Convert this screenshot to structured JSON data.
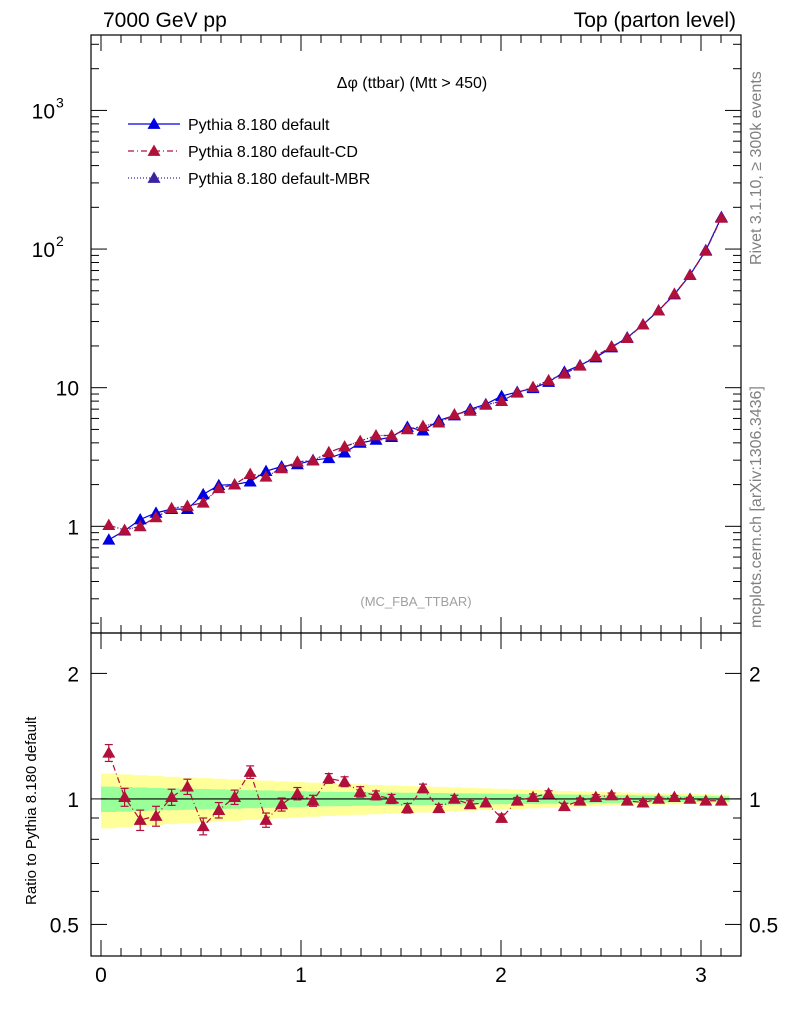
{
  "header": {
    "left": "7000 GeV pp",
    "right": "Top (parton level)"
  },
  "side_text": {
    "rivet": "Rivet 3.1.10, ≥ 300k events",
    "mcplots": "mcplots.cern.ch [arXiv:1306.3436]"
  },
  "colors": {
    "default": "#0000e0",
    "cd": "#b0103a",
    "mbr": "#3c22a0",
    "band_outer": "#ffff99",
    "band_inner": "#99ff99"
  },
  "chart_data": [
    {
      "type": "line",
      "title": "Δφ (ttbar) (Mtt > 450)",
      "annotation": "(MC_FBA_TTBAR)",
      "xlabel": "",
      "ylabel": "",
      "yscale": "log",
      "xlim": [
        -0.05,
        3.2
      ],
      "ylim": [
        0.17,
        3500
      ],
      "y_ticks": [
        {
          "v": 1,
          "label": "1"
        },
        {
          "v": 10,
          "label": "10"
        },
        {
          "v": 100,
          "label": "10",
          "sup": "2"
        },
        {
          "v": 1000,
          "label": "10",
          "sup": "3"
        }
      ],
      "legend_position": "top-left",
      "x": [
        0.039,
        0.118,
        0.196,
        0.275,
        0.353,
        0.432,
        0.511,
        0.589,
        0.668,
        0.746,
        0.825,
        0.903,
        0.982,
        1.06,
        1.139,
        1.218,
        1.296,
        1.375,
        1.453,
        1.532,
        1.61,
        1.689,
        1.767,
        1.846,
        1.924,
        2.003,
        2.081,
        2.16,
        2.238,
        2.317,
        2.395,
        2.474,
        2.553,
        2.631,
        2.71,
        2.788,
        2.867,
        2.945,
        3.024,
        3.102
      ],
      "series": [
        {
          "name": "Pythia 8.180 default",
          "color": "#0000e0",
          "dash": "",
          "values": [
            0.8,
            0.93,
            1.12,
            1.25,
            1.33,
            1.33,
            1.7,
            1.98,
            2.0,
            2.1,
            2.5,
            2.7,
            2.8,
            3.0,
            3.1,
            3.4,
            4.0,
            4.2,
            4.4,
            5.2,
            4.9,
            5.8,
            6.3,
            7.0,
            7.6,
            8.7,
            9.3,
            9.9,
            11.0,
            13.0,
            14.5,
            16.5,
            19.5,
            23.0,
            28.5,
            36.0,
            47.0,
            65.0,
            98.0,
            170.0
          ]
        },
        {
          "name": "Pythia 8.180 default-CD",
          "color": "#b0103a",
          "dash": "6,3,1,3",
          "values": [
            1.02,
            0.94,
            1.0,
            1.16,
            1.35,
            1.4,
            1.48,
            1.88,
            2.0,
            2.38,
            2.28,
            2.62,
            2.92,
            2.98,
            3.42,
            3.76,
            4.12,
            4.52,
            4.52,
            5.0,
            5.28,
            5.6,
            6.4,
            6.8,
            7.52,
            8.0,
            9.2,
            10.1,
            11.3,
            12.6,
            14.4,
            16.9,
            19.8,
            22.8,
            28.5,
            36.0,
            47.5,
            65.0,
            97.0,
            168.0
          ]
        },
        {
          "name": "Pythia 8.180 default-MBR",
          "color": "#3c22a0",
          "dash": "1,2",
          "values": [
            1.02,
            0.94,
            1.0,
            1.16,
            1.35,
            1.4,
            1.48,
            1.88,
            2.0,
            2.38,
            2.28,
            2.62,
            2.92,
            2.98,
            3.42,
            3.76,
            4.12,
            4.52,
            4.52,
            5.0,
            5.28,
            5.6,
            6.4,
            6.8,
            7.52,
            8.0,
            9.2,
            10.1,
            11.3,
            12.6,
            14.4,
            16.9,
            19.8,
            22.8,
            28.5,
            36.0,
            47.5,
            65.0,
            97.0,
            168.0
          ]
        }
      ]
    },
    {
      "type": "line",
      "ylabel": "Ratio to Pythia 8.180 default",
      "xlabel": "",
      "yscale": "log",
      "xlim": [
        -0.05,
        3.2
      ],
      "ylim": [
        0.42,
        2.5
      ],
      "x_ticks": [
        0,
        1,
        2,
        3
      ],
      "y_ticks": [
        {
          "v": 0.5,
          "label": "0.5"
        },
        {
          "v": 1,
          "label": "1"
        },
        {
          "v": 2,
          "label": "2"
        }
      ],
      "reference_line": 1,
      "band_inner_halfwidth": [
        0.07,
        0.068,
        0.065,
        0.062,
        0.06,
        0.058,
        0.056,
        0.054,
        0.052,
        0.05,
        0.048,
        0.046,
        0.044,
        0.042,
        0.04,
        0.039,
        0.038,
        0.037,
        0.036,
        0.035,
        0.034,
        0.033,
        0.032,
        0.031,
        0.03,
        0.029,
        0.028,
        0.027,
        0.026,
        0.025,
        0.024,
        0.023,
        0.022,
        0.021,
        0.02,
        0.019,
        0.018,
        0.017,
        0.016,
        0.015
      ],
      "band_outer_halfwidth": [
        0.15,
        0.145,
        0.14,
        0.135,
        0.13,
        0.126,
        0.122,
        0.118,
        0.114,
        0.11,
        0.106,
        0.102,
        0.098,
        0.094,
        0.09,
        0.087,
        0.084,
        0.081,
        0.078,
        0.075,
        0.072,
        0.069,
        0.066,
        0.063,
        0.06,
        0.057,
        0.054,
        0.051,
        0.048,
        0.045,
        0.042,
        0.04,
        0.038,
        0.036,
        0.034,
        0.032,
        0.03,
        0.028,
        0.026,
        0.024
      ],
      "series": [
        {
          "name": "Pythia 8.180 default-CD",
          "color": "#b0103a",
          "dash": "6,3,1,3",
          "values": [
            1.29,
            1.01,
            0.89,
            0.91,
            1.01,
            1.07,
            0.86,
            0.94,
            1.01,
            1.16,
            0.89,
            0.97,
            1.03,
            0.99,
            1.12,
            1.1,
            1.04,
            1.02,
            1.0,
            0.95,
            1.06,
            0.95,
            1.0,
            0.97,
            0.98,
            0.9,
            0.99,
            1.01,
            1.03,
            0.96,
            0.99,
            1.01,
            1.02,
            0.99,
            0.98,
            1.0,
            1.01,
            1.0,
            0.99,
            0.99
          ],
          "errors": [
            0.06,
            0.05,
            0.05,
            0.05,
            0.045,
            0.045,
            0.04,
            0.04,
            0.04,
            0.04,
            0.035,
            0.035,
            0.035,
            0.03,
            0.03,
            0.03,
            0.03,
            0.025,
            0.025,
            0.025,
            0.025,
            0.02,
            0.02,
            0.02,
            0.02,
            0.02,
            0.018,
            0.018,
            0.016,
            0.016,
            0.015,
            0.014,
            0.013,
            0.012,
            0.011,
            0.01,
            0.009,
            0.008,
            0.007,
            0.006
          ]
        }
      ]
    }
  ]
}
